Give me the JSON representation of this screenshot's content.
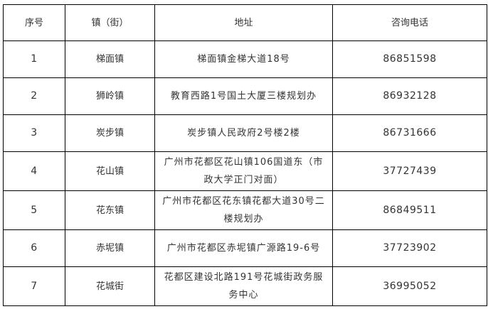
{
  "table": {
    "headers": [
      "序号",
      "镇（街）",
      "地址",
      "咨询电话"
    ],
    "rows": [
      {
        "no": "1",
        "town": "梯面镇",
        "address": "梯面镇金梯大道18号",
        "phone": "86851598"
      },
      {
        "no": "2",
        "town": "狮岭镇",
        "address": "教育西路1号国土大厦三楼规划办",
        "phone": "86932128"
      },
      {
        "no": "3",
        "town": "炭步镇",
        "address": "炭步镇人民政府2号楼2楼",
        "phone": "86731666"
      },
      {
        "no": "4",
        "town": "花山镇",
        "address": "广州市花都区花山镇106国道东（市政大学正门对面）",
        "phone": "37727439"
      },
      {
        "no": "5",
        "town": "花东镇",
        "address": "广州市花都区花东镇花都大道30号二楼规划办",
        "phone": "86849511"
      },
      {
        "no": "6",
        "town": "赤坭镇",
        "address": "广州市花都区赤坭镇广源路19-6号",
        "phone": "37723902"
      },
      {
        "no": "7",
        "town": "花城街",
        "address": "花都区建设北路191号花城街政务服务中心",
        "phone": "36995052"
      }
    ]
  }
}
